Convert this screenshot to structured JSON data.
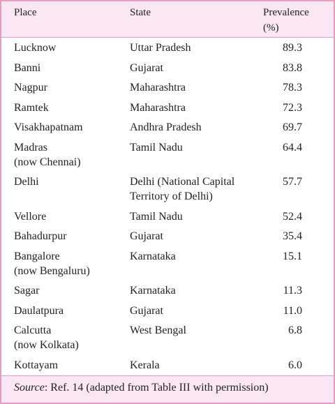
{
  "header": {
    "place": "Place",
    "state": "State",
    "prevalence": [
      "Prevalence",
      "(%)"
    ]
  },
  "table": {
    "rows": [
      [
        [
          "Lucknow"
        ],
        [
          "Uttar Pradesh"
        ],
        "89.3"
      ],
      [
        [
          "Banni"
        ],
        [
          "Gujarat"
        ],
        "83.8"
      ],
      [
        [
          "Nagpur"
        ],
        [
          "Maharashtra"
        ],
        "78.3"
      ],
      [
        [
          "Ramtek"
        ],
        [
          "Maharashtra"
        ],
        "72.3"
      ],
      [
        [
          "Visakhapatnam"
        ],
        [
          "Andhra Pradesh"
        ],
        "69.7"
      ],
      [
        [
          "Madras",
          "(now Chennai)"
        ],
        [
          "Tamil Nadu"
        ],
        "64.4"
      ],
      [
        [
          "Delhi"
        ],
        [
          "Delhi (National Capital",
          "Territory of Delhi)"
        ],
        "57.7"
      ],
      [
        [
          "Vellore"
        ],
        [
          "Tamil Nadu"
        ],
        "52.4"
      ],
      [
        [
          "Bahadurpur"
        ],
        [
          "Gujarat"
        ],
        "35.4"
      ],
      [
        [
          "Bangalore",
          "(now Bengaluru)"
        ],
        [
          "Karnataka"
        ],
        "15.1"
      ],
      [
        [
          "Sagar"
        ],
        [
          "Karnataka"
        ],
        "11.3"
      ],
      [
        [
          "Daulatpura"
        ],
        [
          "Gujarat"
        ],
        "11.0"
      ],
      [
        [
          "Calcutta",
          "(now Kolkata)"
        ],
        [
          "West Bengal"
        ],
        "6.8"
      ],
      [
        [
          "Kottayam"
        ],
        [
          "Kerala"
        ],
        "6.0"
      ]
    ]
  },
  "footer": {
    "label": "Source",
    "text": ": Ref. 14 (adapted from Table III with permission)"
  }
}
